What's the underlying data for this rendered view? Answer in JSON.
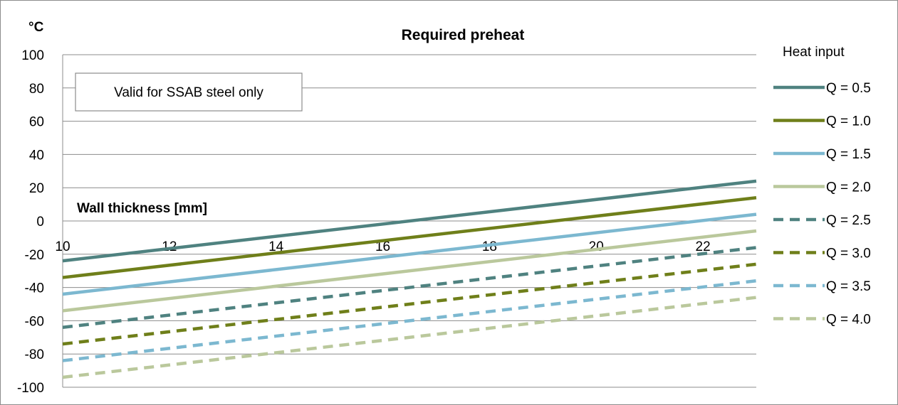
{
  "chart_data": {
    "type": "line",
    "title": "Required preheat",
    "ylabel": "°C",
    "xlabel": "Wall thickness [mm]",
    "xlim": [
      10,
      23
    ],
    "ylim": [
      -100,
      100
    ],
    "xticks": [
      10,
      12,
      14,
      16,
      18,
      20,
      22
    ],
    "yticks": [
      100,
      80,
      60,
      40,
      20,
      0,
      -20,
      -40,
      -60,
      -80,
      -100
    ],
    "grid": true,
    "annotation": "Valid for SSAB steel only",
    "legend_title": "Heat input",
    "legend_position": "right",
    "series": [
      {
        "name": "Q = 0.5",
        "x": [
          10,
          23
        ],
        "y": [
          -24,
          24
        ],
        "color": "#4f8280",
        "dash": false
      },
      {
        "name": "Q = 1.0",
        "x": [
          10,
          23
        ],
        "y": [
          -34,
          14
        ],
        "color": "#6f7f1a",
        "dash": false
      },
      {
        "name": "Q = 1.5",
        "x": [
          10,
          23
        ],
        "y": [
          -44,
          4
        ],
        "color": "#7cb8d0",
        "dash": false
      },
      {
        "name": "Q = 2.0",
        "x": [
          10,
          23
        ],
        "y": [
          -54,
          -6
        ],
        "color": "#bac89c",
        "dash": false
      },
      {
        "name": "Q = 2.5",
        "x": [
          10,
          23
        ],
        "y": [
          -64,
          -16
        ],
        "color": "#4f8280",
        "dash": true
      },
      {
        "name": "Q = 3.0",
        "x": [
          10,
          23
        ],
        "y": [
          -74,
          -26
        ],
        "color": "#6f7f1a",
        "dash": true
      },
      {
        "name": "Q = 3.5",
        "x": [
          10,
          23
        ],
        "y": [
          -84,
          -36
        ],
        "color": "#7cb8d0",
        "dash": true
      },
      {
        "name": "Q = 4.0",
        "x": [
          10,
          23
        ],
        "y": [
          -94,
          -46
        ],
        "color": "#bac89c",
        "dash": true
      }
    ]
  }
}
